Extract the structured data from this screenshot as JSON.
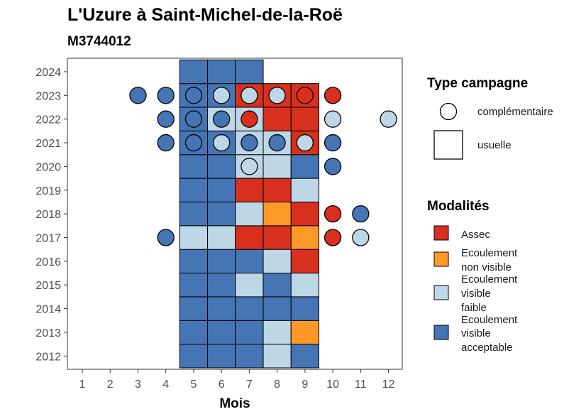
{
  "chart_data": {
    "type": "heatmap",
    "title": "L'Uzure à Saint-Michel-de-la-Roë",
    "subtitle": "M3744012",
    "xlabel": "Mois",
    "ylabel": "",
    "x_ticks": [
      1,
      2,
      3,
      4,
      5,
      6,
      7,
      8,
      9,
      10,
      11,
      12
    ],
    "y_ticks": [
      2012,
      2013,
      2014,
      2015,
      2016,
      2017,
      2018,
      2019,
      2020,
      2021,
      2022,
      2023,
      2024
    ],
    "xlim": [
      0.5,
      12.5
    ],
    "ylim": [
      2011.5,
      2024.5
    ],
    "grid": false,
    "legend_position": "right",
    "colors": {
      "assec": "#d7301f",
      "non_visible": "#fe9929",
      "faible": "#bdd7e7",
      "acceptable": "#4575b4"
    },
    "legend_campagne": {
      "title": "Type campagne",
      "items": [
        {
          "key": "complementaire",
          "label": "complémentaire",
          "shape": "circle"
        },
        {
          "key": "usuelle",
          "label": "usuelle",
          "shape": "square"
        }
      ]
    },
    "legend_modalites": {
      "title": "Modalités",
      "items": [
        {
          "key": "assec",
          "lines": [
            "Assec"
          ],
          "color": "#d7301f"
        },
        {
          "key": "non_visible",
          "lines": [
            "Ecoulement",
            "non visible"
          ],
          "color": "#fe9929"
        },
        {
          "key": "faible",
          "lines": [
            "Ecoulement",
            "visible",
            "faible"
          ],
          "color": "#bdd7e7"
        },
        {
          "key": "acceptable",
          "lines": [
            "Ecoulement",
            "visible",
            "acceptable"
          ],
          "color": "#4575b4"
        }
      ]
    },
    "usuelle": [
      {
        "year": 2012,
        "values": {
          "5": "acceptable",
          "6": "acceptable",
          "7": "acceptable",
          "8": "faible",
          "9": "acceptable"
        }
      },
      {
        "year": 2013,
        "values": {
          "5": "acceptable",
          "6": "acceptable",
          "7": "acceptable",
          "8": "faible",
          "9": "non_visible"
        }
      },
      {
        "year": 2014,
        "values": {
          "5": "acceptable",
          "6": "acceptable",
          "7": "acceptable",
          "8": "acceptable",
          "9": "acceptable"
        }
      },
      {
        "year": 2015,
        "values": {
          "5": "acceptable",
          "6": "acceptable",
          "7": "faible",
          "8": "acceptable",
          "9": "faible"
        }
      },
      {
        "year": 2016,
        "values": {
          "5": "acceptable",
          "6": "acceptable",
          "7": "acceptable",
          "8": "faible",
          "9": "assec"
        }
      },
      {
        "year": 2017,
        "values": {
          "5": "faible",
          "6": "faible",
          "7": "assec",
          "8": "assec",
          "9": "non_visible"
        }
      },
      {
        "year": 2018,
        "values": {
          "5": "acceptable",
          "6": "acceptable",
          "7": "faible",
          "8": "non_visible",
          "9": "assec"
        }
      },
      {
        "year": 2019,
        "values": {
          "5": "acceptable",
          "6": "acceptable",
          "7": "assec",
          "8": "assec",
          "9": "faible"
        }
      },
      {
        "year": 2020,
        "values": {
          "5": "acceptable",
          "6": "acceptable",
          "7": "faible",
          "8": "faible",
          "9": "acceptable"
        }
      },
      {
        "year": 2021,
        "values": {
          "5": "acceptable",
          "6": "acceptable",
          "7": "faible",
          "8": "faible",
          "9": "assec"
        }
      },
      {
        "year": 2022,
        "values": {
          "5": "acceptable",
          "6": "faible",
          "7": "faible",
          "8": "assec",
          "9": "assec"
        }
      },
      {
        "year": 2023,
        "values": {
          "5": "acceptable",
          "6": "acceptable",
          "7": "assec",
          "8": "assec",
          "9": "assec"
        }
      },
      {
        "year": 2024,
        "values": {
          "5": "acceptable",
          "6": "acceptable",
          "7": "acceptable"
        }
      }
    ],
    "complementaire": [
      {
        "year": 2017,
        "month": 4,
        "value": "acceptable"
      },
      {
        "year": 2017,
        "month": 10,
        "value": "assec"
      },
      {
        "year": 2017,
        "month": 11,
        "value": "faible"
      },
      {
        "year": 2018,
        "month": 10,
        "value": "assec"
      },
      {
        "year": 2018,
        "month": 11,
        "value": "acceptable"
      },
      {
        "year": 2020,
        "month": 7,
        "value": "faible"
      },
      {
        "year": 2020,
        "month": 10,
        "value": "acceptable"
      },
      {
        "year": 2021,
        "month": 4,
        "value": "acceptable"
      },
      {
        "year": 2021,
        "month": 5,
        "value": "acceptable"
      },
      {
        "year": 2021,
        "month": 6,
        "value": "faible"
      },
      {
        "year": 2021,
        "month": 7,
        "value": "acceptable"
      },
      {
        "year": 2021,
        "month": 8,
        "value": "acceptable"
      },
      {
        "year": 2021,
        "month": 9,
        "value": "faible"
      },
      {
        "year": 2021,
        "month": 10,
        "value": "acceptable"
      },
      {
        "year": 2022,
        "month": 4,
        "value": "acceptable"
      },
      {
        "year": 2022,
        "month": 5,
        "value": "acceptable"
      },
      {
        "year": 2022,
        "month": 6,
        "value": "acceptable"
      },
      {
        "year": 2022,
        "month": 7,
        "value": "assec"
      },
      {
        "year": 2022,
        "month": 10,
        "value": "faible"
      },
      {
        "year": 2022,
        "month": 12,
        "value": "faible"
      },
      {
        "year": 2023,
        "month": 3,
        "value": "acceptable"
      },
      {
        "year": 2023,
        "month": 4,
        "value": "acceptable"
      },
      {
        "year": 2023,
        "month": 5,
        "value": "acceptable"
      },
      {
        "year": 2023,
        "month": 6,
        "value": "faible"
      },
      {
        "year": 2023,
        "month": 7,
        "value": "faible"
      },
      {
        "year": 2023,
        "month": 8,
        "value": "faible"
      },
      {
        "year": 2023,
        "month": 9,
        "value": "assec"
      },
      {
        "year": 2023,
        "month": 10,
        "value": "assec"
      }
    ]
  }
}
